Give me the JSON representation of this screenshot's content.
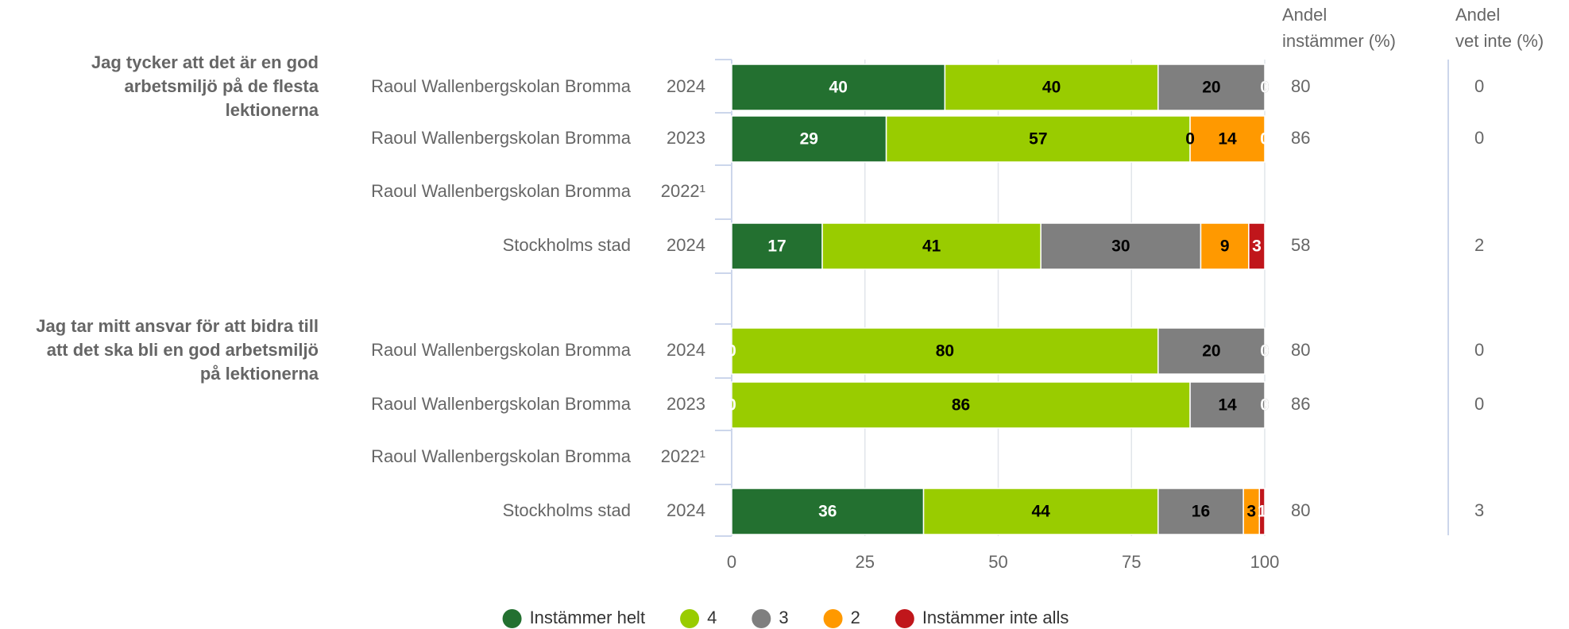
{
  "chart_data": {
    "type": "stacked-bar-horizontal",
    "questions": [
      [
        "Jag tycker att det är en god",
        "arbetsmiljö på de flesta",
        "lektionerna"
      ],
      [
        "Jag tar mitt ansvar för att bidra till",
        "att det ska bli en god arbetsmiljö",
        "på lektionerna"
      ]
    ],
    "categories": [
      "Raoul Wallenbergskolan Bromma",
      "Raoul Wallenbergskolan Bromma",
      "Raoul Wallenbergskolan Bromma",
      "Stockholms stad",
      "Raoul Wallenbergskolan Bromma",
      "Raoul Wallenbergskolan Bromma",
      "Raoul Wallenbergskolan Bromma",
      "Stockholms stad"
    ],
    "years": [
      "2024",
      "2023",
      "2022¹",
      "2024",
      "2024",
      "2023",
      "2022¹",
      "2024"
    ],
    "series": [
      {
        "name": "Instämmer helt",
        "color": "#237030",
        "values": [
          40,
          29,
          null,
          17,
          0,
          0,
          null,
          36
        ]
      },
      {
        "name": "4",
        "color": "#99cc00",
        "values": [
          40,
          57,
          null,
          41,
          80,
          86,
          null,
          44
        ]
      },
      {
        "name": "3",
        "color": "#7f7f7f",
        "values": [
          20,
          0,
          null,
          30,
          20,
          14,
          null,
          16
        ]
      },
      {
        "name": "2",
        "color": "#ff9900",
        "values": [
          0,
          14,
          null,
          9,
          0,
          0,
          null,
          3
        ]
      },
      {
        "name": "Instämmer inte alls",
        "color": "#c0161b",
        "values": [
          0,
          0,
          null,
          3,
          0,
          0,
          null,
          1
        ]
      }
    ],
    "columns": [
      {
        "header": [
          "Andel",
          "instämmer (%)"
        ],
        "values": [
          80,
          86,
          null,
          58,
          80,
          86,
          null,
          80
        ]
      },
      {
        "header": [
          "Andel",
          "vet inte (%)"
        ],
        "values": [
          0,
          0,
          null,
          2,
          0,
          0,
          null,
          3
        ]
      }
    ],
    "xlim": [
      0,
      100
    ],
    "xticks": [
      0,
      25,
      50,
      75,
      100
    ],
    "grid": true
  }
}
